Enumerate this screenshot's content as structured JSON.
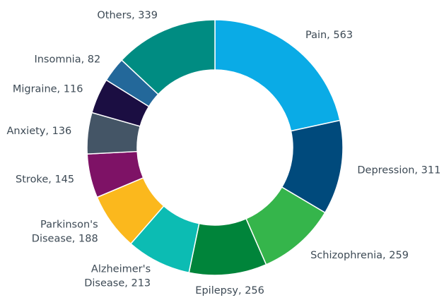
{
  "chart_data": {
    "type": "donut",
    "labels": [
      [
        "Pain, 563"
      ],
      [
        "Depression, 311"
      ],
      [
        "Schizophrenia, 259"
      ],
      [
        "Epilepsy, 256"
      ],
      [
        "Alzheimer's",
        "Disease, 213"
      ],
      [
        "Parkinson's",
        "Disease, 188"
      ],
      [
        "Stroke, 145"
      ],
      [
        "Anxiety, 136"
      ],
      [
        "Migraine, 116"
      ],
      [
        "Insomnia, 82"
      ],
      [
        "Others, 339"
      ]
    ],
    "values": [
      563,
      311,
      259,
      256,
      213,
      188,
      145,
      136,
      116,
      82,
      339
    ],
    "colors": [
      "#0aabe6",
      "#004a7c",
      "#35b54b",
      "#00843a",
      "#0cbcb3",
      "#fbb81d",
      "#7e1266",
      "#445566",
      "#1b0e42",
      "#23689a",
      "#008c82"
    ]
  }
}
